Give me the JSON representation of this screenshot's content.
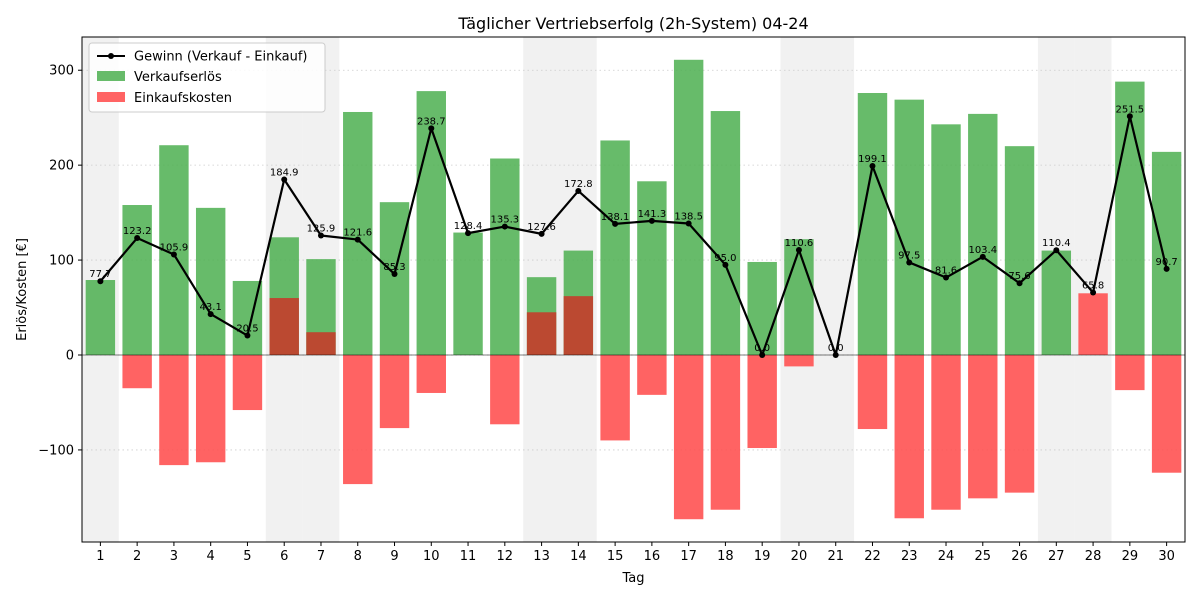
{
  "chart_data": {
    "type": "bar",
    "title": "Täglicher Vertriebserfolg (2h-System) 04-24",
    "xlabel": "Tag",
    "ylabel": "Erlös/Kosten [€]",
    "ylim": [
      -197,
      335
    ],
    "yticks": [
      -100,
      0,
      100,
      200,
      300
    ],
    "grid": "horizontal-dotted",
    "legend_position": "top-left",
    "categories": [
      "1",
      "2",
      "3",
      "4",
      "5",
      "6",
      "7",
      "8",
      "9",
      "10",
      "11",
      "12",
      "13",
      "14",
      "15",
      "16",
      "17",
      "18",
      "19",
      "20",
      "21",
      "22",
      "23",
      "24",
      "25",
      "26",
      "27",
      "28",
      "29",
      "30"
    ],
    "weekend_days": [
      "1",
      "6",
      "7",
      "13",
      "14",
      "20",
      "21",
      "27",
      "28"
    ],
    "colors": {
      "revenue": "#4caf50",
      "cost": "#ff5252",
      "overlap": "#c0422e",
      "profit": "#000000",
      "weekend_band": "#e0e0e0"
    },
    "series": [
      {
        "name": "Gewinn (Verkauf - Einkauf)",
        "kind": "line",
        "values": [
          77.7,
          123.2,
          105.9,
          43.1,
          20.5,
          184.9,
          125.9,
          121.6,
          85.3,
          238.7,
          128.4,
          135.3,
          127.6,
          172.8,
          138.1,
          141.3,
          138.5,
          95.0,
          0.0,
          110.6,
          0.0,
          199.1,
          97.5,
          81.6,
          103.4,
          75.6,
          110.4,
          65.8,
          251.5,
          90.7
        ]
      },
      {
        "name": "Verkaufserlös",
        "kind": "bar",
        "values": [
          79,
          158,
          221,
          155,
          78,
          124,
          101,
          256,
          161,
          278,
          129,
          207,
          82,
          110,
          226,
          183,
          311,
          257,
          98,
          122,
          0,
          276,
          269,
          243,
          254,
          220,
          110,
          0,
          288,
          214
        ]
      },
      {
        "name": "Einkaufskosten",
        "kind": "bar",
        "values": [
          0,
          -35,
          -116,
          -113,
          -58,
          60,
          24,
          -136,
          -77,
          -40,
          0,
          -73,
          45,
          62,
          -90,
          -42,
          -173,
          -163,
          -98,
          -12,
          0,
          -78,
          -172,
          -163,
          -151,
          -145,
          0,
          65,
          -37,
          -124
        ]
      }
    ],
    "data_labels": [
      "77.7",
      "123.2",
      "105.9",
      "43.1",
      "20.5",
      "184.9",
      "125.9",
      "121.6",
      "85.3",
      "238.7",
      "128.4",
      "135.3",
      "127.6",
      "172.8",
      "138.1",
      "141.3",
      "138.5",
      "95.0",
      "0.0",
      "110.6",
      "0.0",
      "199.1",
      "97.5",
      "81.6",
      "103.4",
      "75.6",
      "110.4",
      "65.8",
      "251.5",
      "90.7"
    ]
  }
}
